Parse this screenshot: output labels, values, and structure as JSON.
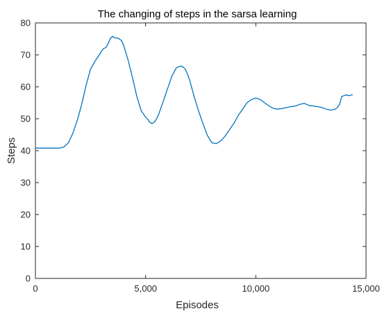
{
  "chart_data": {
    "type": "line",
    "title": "The changing of steps in the sarsa learning",
    "xlabel": "Episodes",
    "ylabel": "Steps",
    "xlim": [
      0,
      15000
    ],
    "ylim": [
      0,
      80
    ],
    "x_ticks": [
      0,
      5000,
      10000,
      15000
    ],
    "x_tick_labels": [
      "0",
      "5,000",
      "10,000",
      "15,000"
    ],
    "y_ticks": [
      0,
      10,
      20,
      30,
      40,
      50,
      60,
      70,
      80
    ],
    "y_tick_labels": [
      "0",
      "10",
      "20",
      "30",
      "40",
      "50",
      "60",
      "70",
      "80"
    ],
    "grid": false,
    "line_color": "#0072BD",
    "series": [
      {
        "x": [
          0,
          300,
          600,
          900,
          1100,
          1300,
          1500,
          1700,
          1900,
          2100,
          2300,
          2500,
          2700,
          2900,
          3000,
          3100,
          3200,
          3300,
          3400,
          3500,
          3600,
          3700,
          3800,
          3900,
          4000,
          4200,
          4400,
          4600,
          4800,
          5000,
          5100,
          5200,
          5300,
          5400,
          5500,
          5600,
          5800,
          6000,
          6200,
          6400,
          6600,
          6700,
          6800,
          6900,
          7000,
          7200,
          7400,
          7600,
          7800,
          8000,
          8200,
          8400,
          8600,
          8700,
          8800,
          9000,
          9200,
          9400,
          9600,
          9800,
          10000,
          10200,
          10400,
          10600,
          10800,
          11000,
          11200,
          11400,
          11600,
          11800,
          12000,
          12200,
          12400,
          12600,
          12800,
          13000,
          13200,
          13400,
          13600,
          13700,
          13800,
          13900,
          14000,
          14100,
          14200,
          14300,
          14400
        ],
        "y": [
          40.8,
          40.8,
          40.8,
          40.8,
          40.8,
          41.2,
          42.5,
          45.5,
          49.5,
          54.5,
          60.5,
          65.5,
          68.0,
          70.0,
          71.2,
          72.0,
          72.3,
          73.5,
          75.2,
          75.8,
          75.3,
          75.3,
          75.0,
          74.5,
          73.0,
          68.5,
          63.0,
          57.0,
          52.5,
          50.5,
          49.8,
          48.8,
          48.5,
          49.0,
          50.0,
          51.5,
          55.5,
          59.5,
          63.5,
          66.0,
          66.5,
          66.2,
          65.5,
          64.0,
          62.0,
          57.0,
          52.5,
          48.5,
          44.8,
          42.5,
          42.2,
          43.0,
          44.5,
          45.5,
          46.5,
          48.5,
          51.0,
          53.0,
          55.0,
          56.0,
          56.5,
          56.0,
          55.0,
          54.0,
          53.2,
          53.0,
          53.2,
          53.5,
          53.8,
          54.0,
          54.5,
          54.8,
          54.2,
          54.0,
          53.8,
          53.5,
          53.0,
          52.7,
          53.0,
          53.5,
          54.5,
          57.0,
          57.2,
          57.5,
          57.2,
          57.4,
          57.5
        ]
      }
    ]
  }
}
